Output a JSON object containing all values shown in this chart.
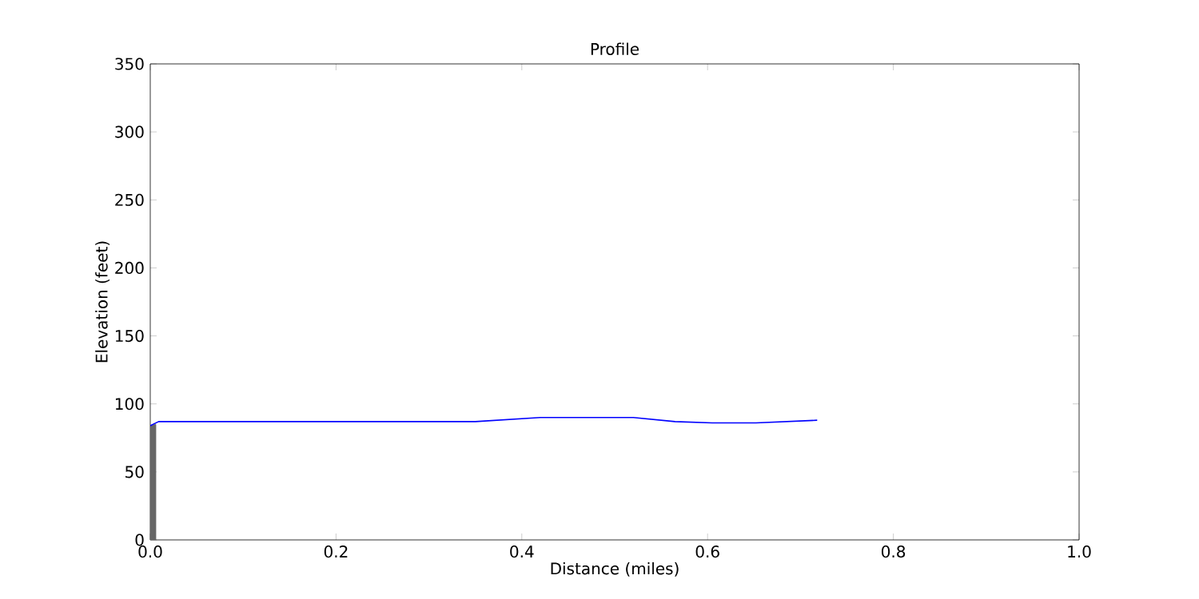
{
  "chart_data": {
    "type": "line",
    "title": "Profile",
    "xlabel": "Distance (miles)",
    "ylabel": "Elevation (feet)",
    "xlim": [
      0,
      1
    ],
    "ylim": [
      0,
      350
    ],
    "xticks": [
      {
        "value": 0,
        "label": "0.0"
      },
      {
        "value": 0.2,
        "label": "0.2"
      },
      {
        "value": 0.4,
        "label": "0.4"
      },
      {
        "value": 0.6,
        "label": "0.6"
      },
      {
        "value": 0.8,
        "label": "0.8"
      },
      {
        "value": 1,
        "label": "1.0"
      }
    ],
    "yticks": [
      0,
      50,
      100,
      150,
      200,
      250,
      300,
      350
    ],
    "series": [
      {
        "type": "area",
        "color": "#666666",
        "x": [
          0,
          0.006
        ],
        "values": [
          84,
          85
        ]
      },
      {
        "color": "#0000ff",
        "x": [
          0,
          0.009,
          0.35,
          0.42,
          0.52,
          0.565,
          0.605,
          0.652,
          0.718
        ],
        "values": [
          84,
          87,
          87,
          90,
          90,
          87,
          86,
          86,
          88
        ]
      }
    ]
  }
}
